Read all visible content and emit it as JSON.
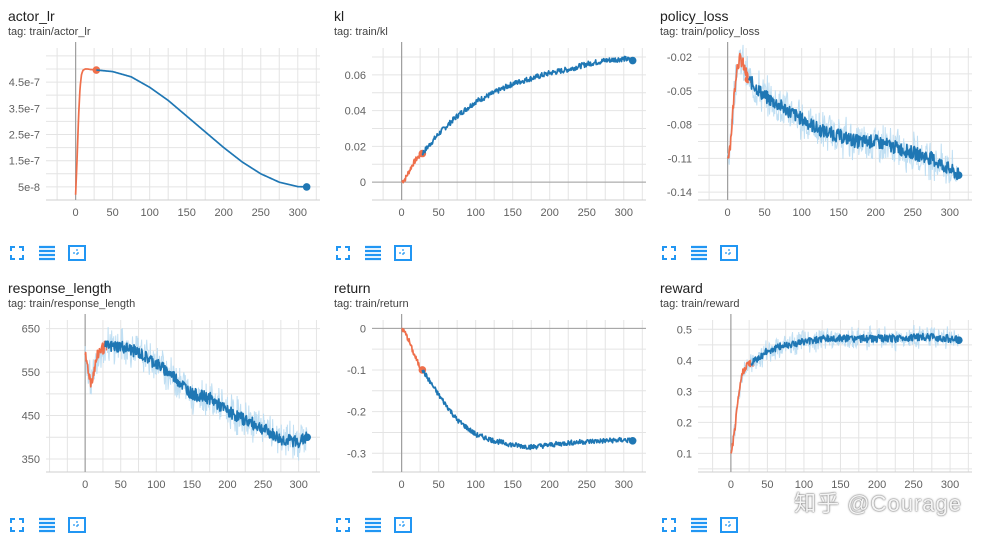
{
  "colors": {
    "orange": "#ef6f4b",
    "blue": "#1f77b4",
    "halo": "#b9dcf2",
    "grid": "#e4e4e4",
    "vline": "#9e9e9e",
    "icon": "#2196f3"
  },
  "toolbar_icons": [
    "fit-domain-icon",
    "toggle-log-icon",
    "download-icon"
  ],
  "watermark": "知乎 @Courage",
  "charts": [
    {
      "id": "actor-lr",
      "title": "actor_lr",
      "tag": "tag: train/actor_lr"
    },
    {
      "id": "kl",
      "title": "kl",
      "tag": "tag: train/kl"
    },
    {
      "id": "policy-loss",
      "title": "policy_loss",
      "tag": "tag: train/policy_loss"
    },
    {
      "id": "response-length",
      "title": "response_length",
      "tag": "tag: train/response_length"
    },
    {
      "id": "return",
      "title": "return",
      "tag": "tag: train/return"
    },
    {
      "id": "reward",
      "title": "reward",
      "tag": "tag: train/reward"
    }
  ],
  "chart_data": [
    {
      "type": "line",
      "title": "actor_lr",
      "xlim": [
        -40,
        330
      ],
      "xticks": [
        0,
        50,
        100,
        150,
        200,
        250,
        300
      ],
      "ylim": [
        0,
        5.8e-07
      ],
      "yticks": [
        5e-08,
        1.5e-07,
        2.5e-07,
        3.5e-07,
        4.5e-07
      ],
      "ytick_labels": [
        "5e-8",
        "1.5e-7",
        "2.5e-7",
        "3.5e-7",
        "4.5e-7"
      ],
      "noise": 0,
      "halo": false,
      "series": [
        {
          "color": "orange",
          "x": [
            0,
            2,
            4,
            6,
            8,
            10,
            13,
            16,
            20,
            25,
            28
          ],
          "y": [
            2e-08,
            1.6e-07,
            3.2e-07,
            4.3e-07,
            4.8e-07,
            4.95e-07,
            5e-07,
            5e-07,
            4.98e-07,
            4.97e-07,
            4.96e-07
          ]
        },
        {
          "color": "blue",
          "x": [
            28,
            50,
            75,
            100,
            125,
            150,
            175,
            200,
            225,
            250,
            275,
            300,
            312
          ],
          "y": [
            4.96e-07,
            4.9e-07,
            4.7e-07,
            4.3e-07,
            3.8e-07,
            3.2e-07,
            2.6e-07,
            2e-07,
            1.45e-07,
            1e-07,
            6.8e-08,
            5.1e-08,
            5e-08
          ]
        }
      ]
    },
    {
      "type": "line",
      "title": "kl",
      "xlim": [
        -40,
        330
      ],
      "xticks": [
        0,
        50,
        100,
        150,
        200,
        250,
        300
      ],
      "ylim": [
        -0.01,
        0.075
      ],
      "yticks": [
        0,
        0.02,
        0.04,
        0.06
      ],
      "ytick_labels": [
        "0",
        "0.02",
        "0.04",
        "0.06"
      ],
      "noise": 0.0015,
      "halo": false,
      "series": [
        {
          "color": "orange",
          "x": [
            0,
            5,
            10,
            15,
            20,
            25,
            28
          ],
          "y": [
            0,
            0.002,
            0.006,
            0.01,
            0.013,
            0.015,
            0.016
          ]
        },
        {
          "color": "blue",
          "x": [
            28,
            50,
            75,
            100,
            125,
            150,
            175,
            200,
            225,
            250,
            275,
            300,
            312
          ],
          "y": [
            0.016,
            0.027,
            0.037,
            0.045,
            0.05,
            0.055,
            0.058,
            0.061,
            0.063,
            0.066,
            0.068,
            0.069,
            0.068
          ]
        }
      ]
    },
    {
      "type": "line",
      "title": "policy_loss",
      "xlim": [
        -40,
        330
      ],
      "xticks": [
        0,
        50,
        100,
        150,
        200,
        250,
        300
      ],
      "ylim": [
        -0.147,
        -0.012
      ],
      "yticks": [
        -0.14,
        -0.11,
        -0.08,
        -0.05,
        -0.02
      ],
      "ytick_labels": [
        "-0.14",
        "-0.11",
        "-0.08",
        "-0.05",
        "-0.02"
      ],
      "noise": 0.006,
      "halo": true,
      "series": [
        {
          "color": "orange",
          "x": [
            0,
            4,
            8,
            12,
            16,
            20,
            25,
            28
          ],
          "y": [
            -0.11,
            -0.095,
            -0.06,
            -0.03,
            -0.022,
            -0.025,
            -0.035,
            -0.04
          ]
        },
        {
          "color": "blue",
          "x": [
            28,
            50,
            75,
            100,
            125,
            150,
            175,
            200,
            225,
            250,
            275,
            300,
            312
          ],
          "y": [
            -0.04,
            -0.055,
            -0.065,
            -0.075,
            -0.085,
            -0.09,
            -0.095,
            -0.095,
            -0.1,
            -0.105,
            -0.11,
            -0.12,
            -0.125
          ]
        }
      ]
    },
    {
      "type": "line",
      "title": "response_length",
      "xlim": [
        -55,
        330
      ],
      "xticks": [
        0,
        50,
        100,
        150,
        200,
        250,
        300
      ],
      "ylim": [
        320,
        670
      ],
      "yticks": [
        350,
        450,
        550,
        650
      ],
      "ytick_labels": [
        "350",
        "450",
        "550",
        "650"
      ],
      "noise": 14,
      "halo": true,
      "series": [
        {
          "color": "orange",
          "x": [
            0,
            4,
            8,
            12,
            16,
            20,
            25,
            28
          ],
          "y": [
            590,
            560,
            525,
            550,
            580,
            600,
            605,
            608
          ]
        },
        {
          "color": "blue",
          "x": [
            28,
            50,
            75,
            100,
            125,
            150,
            175,
            200,
            225,
            250,
            275,
            300,
            312
          ],
          "y": [
            608,
            610,
            595,
            570,
            540,
            500,
            490,
            460,
            440,
            420,
            395,
            390,
            400
          ]
        }
      ]
    },
    {
      "type": "line",
      "title": "return",
      "xlim": [
        -40,
        330
      ],
      "xticks": [
        0,
        50,
        100,
        150,
        200,
        250,
        300
      ],
      "ylim": [
        -0.345,
        0.02
      ],
      "yticks": [
        -0.3,
        -0.2,
        -0.1,
        0
      ],
      "ytick_labels": [
        "-0.3",
        "-0.2",
        "-0.1",
        "0"
      ],
      "noise": 0.006,
      "halo": false,
      "series": [
        {
          "color": "orange",
          "x": [
            0,
            5,
            10,
            15,
            20,
            25,
            28
          ],
          "y": [
            0,
            -0.012,
            -0.03,
            -0.055,
            -0.075,
            -0.095,
            -0.1
          ]
        },
        {
          "color": "blue",
          "x": [
            28,
            50,
            75,
            100,
            125,
            150,
            175,
            200,
            225,
            250,
            275,
            300,
            312
          ],
          "y": [
            -0.1,
            -0.16,
            -0.22,
            -0.255,
            -0.27,
            -0.28,
            -0.285,
            -0.28,
            -0.275,
            -0.272,
            -0.27,
            -0.268,
            -0.27
          ]
        }
      ]
    },
    {
      "type": "line",
      "title": "reward",
      "xlim": [
        -45,
        330
      ],
      "xticks": [
        0,
        50,
        100,
        150,
        200,
        250,
        300
      ],
      "xtick_labels": [
        "0",
        "50",
        "100",
        "150",
        "200",
        "250",
        "300"
      ],
      "ylim": [
        0.04,
        0.53
      ],
      "yticks": [
        0.1,
        0.2,
        0.3,
        0.4,
        0.5
      ],
      "ytick_labels": [
        "0.1",
        "0.2",
        "0.3",
        "0.4",
        "0.5"
      ],
      "noise": 0.012,
      "halo": true,
      "series": [
        {
          "color": "orange",
          "x": [
            0,
            4,
            8,
            12,
            16,
            20,
            25,
            28
          ],
          "y": [
            0.1,
            0.15,
            0.23,
            0.31,
            0.36,
            0.38,
            0.39,
            0.39
          ]
        },
        {
          "color": "blue",
          "x": [
            28,
            50,
            75,
            100,
            125,
            150,
            175,
            200,
            225,
            250,
            275,
            300,
            312
          ],
          "y": [
            0.39,
            0.43,
            0.45,
            0.46,
            0.47,
            0.47,
            0.47,
            0.47,
            0.47,
            0.475,
            0.475,
            0.47,
            0.465
          ]
        }
      ]
    }
  ]
}
